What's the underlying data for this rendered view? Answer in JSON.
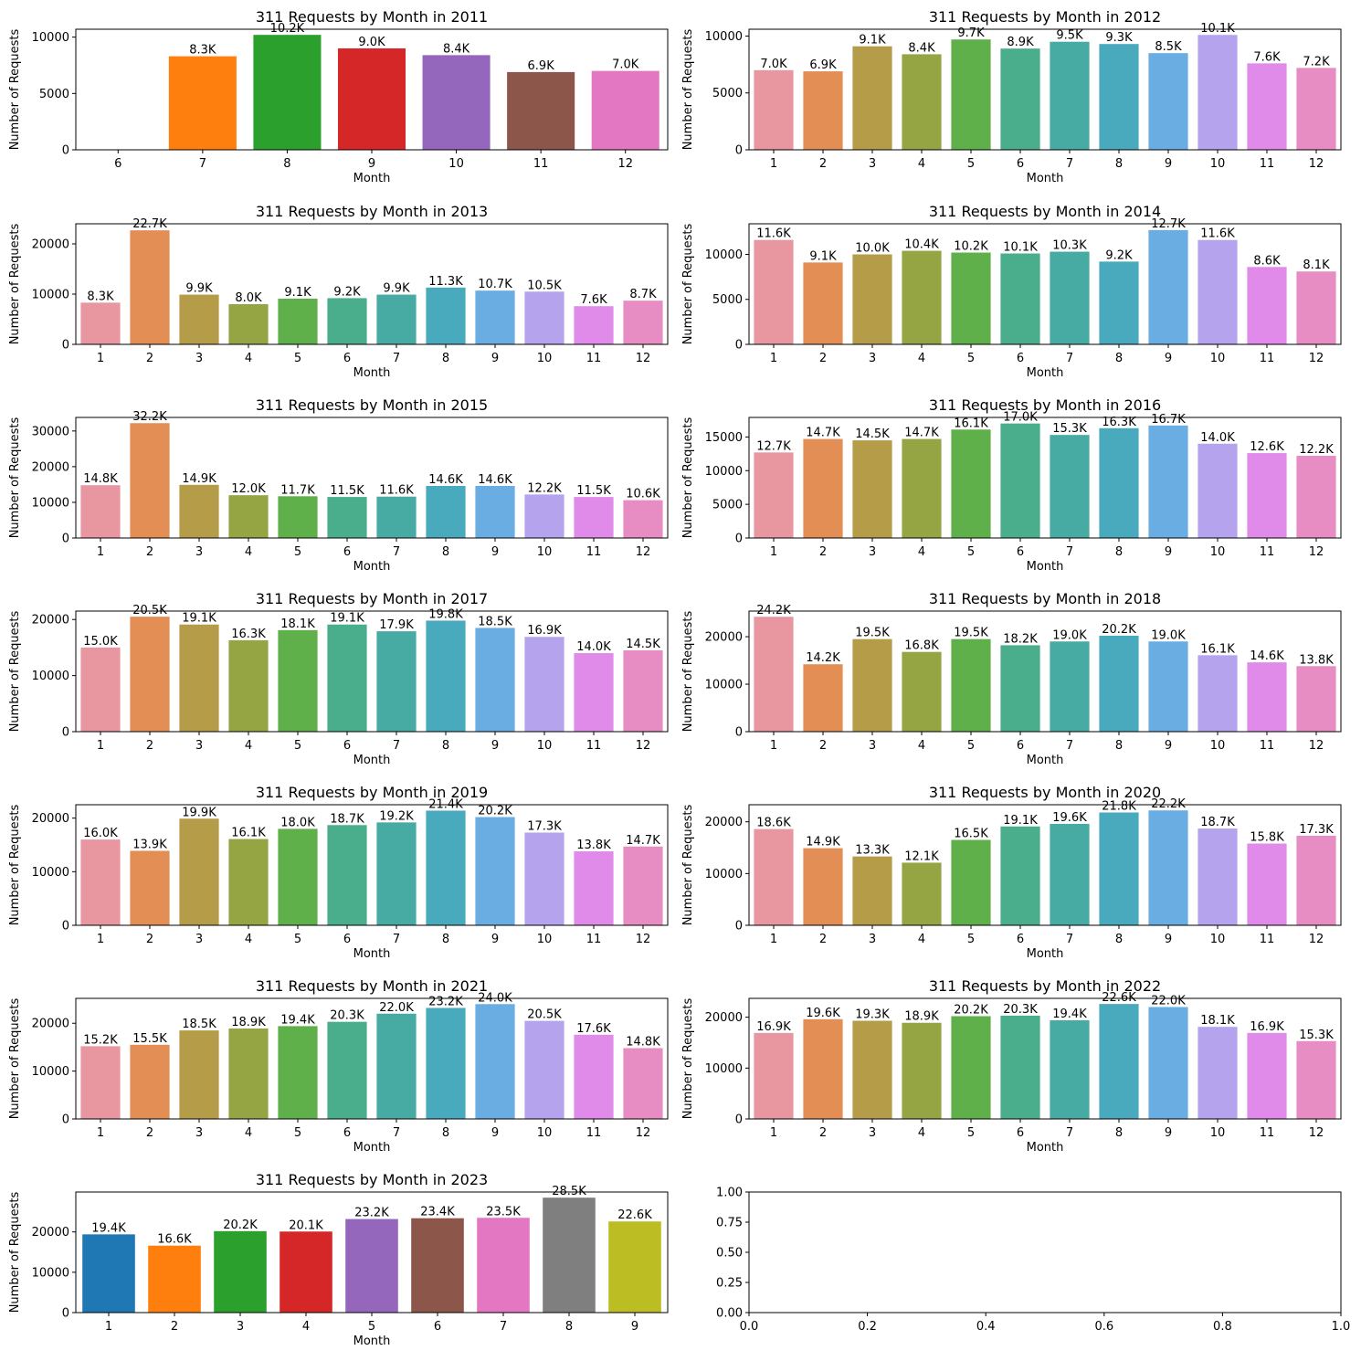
{
  "palette_12": [
    "#e8969f",
    "#e28e55",
    "#b49c48",
    "#96a544",
    "#5fb04a",
    "#4aae8d",
    "#47aba4",
    "#49aabe",
    "#69ade3",
    "#b5a4ed",
    "#e08be9",
    "#e78dc3"
  ],
  "palette_tab10": [
    "#1f77b4",
    "#ff7f0e",
    "#2ca02c",
    "#d62728",
    "#9467bd",
    "#8c564b",
    "#e377c2",
    "#7f7f7f",
    "#bcbd22",
    "#17becf"
  ],
  "chart_data": [
    {
      "type": "bar",
      "title": "311 Requests by Month in 2011",
      "xlabel": "Month",
      "ylabel": "Number of Requests",
      "categories": [
        "6",
        "7",
        "8",
        "9",
        "10",
        "11",
        "12"
      ],
      "values": [
        0,
        8300,
        10200,
        9000,
        8400,
        6900,
        7000
      ],
      "labels": [
        "",
        "8.3K",
        "10.2K",
        "9.0K",
        "8.4K",
        "6.9K",
        "7.0K"
      ],
      "ylim": [
        0,
        10700
      ],
      "yticks": [
        0,
        5000,
        10000
      ],
      "ytick_labels": [
        "0",
        "5000",
        "10000"
      ],
      "palette": "tab10"
    },
    {
      "type": "bar",
      "title": "311 Requests by Month in 2012",
      "xlabel": "Month",
      "ylabel": "Number of Requests",
      "categories": [
        "1",
        "2",
        "3",
        "4",
        "5",
        "6",
        "7",
        "8",
        "9",
        "10",
        "11",
        "12"
      ],
      "values": [
        7000,
        6900,
        9100,
        8400,
        9700,
        8900,
        9500,
        9300,
        8500,
        10100,
        7600,
        7200
      ],
      "labels": [
        "7.0K",
        "6.9K",
        "9.1K",
        "8.4K",
        "9.7K",
        "8.9K",
        "9.5K",
        "9.3K",
        "8.5K",
        "10.1K",
        "7.6K",
        "7.2K"
      ],
      "ylim": [
        0,
        10600
      ],
      "yticks": [
        0,
        5000,
        10000
      ],
      "ytick_labels": [
        "0",
        "5000",
        "10000"
      ],
      "palette": "12"
    },
    {
      "type": "bar",
      "title": "311 Requests by Month in 2013",
      "xlabel": "Month",
      "ylabel": "Number of Requests",
      "categories": [
        "1",
        "2",
        "3",
        "4",
        "5",
        "6",
        "7",
        "8",
        "9",
        "10",
        "11",
        "12"
      ],
      "values": [
        8300,
        22700,
        9900,
        8000,
        9100,
        9200,
        9900,
        11300,
        10700,
        10500,
        7600,
        8700
      ],
      "labels": [
        "8.3K",
        "22.7K",
        "9.9K",
        "8.0K",
        "9.1K",
        "9.2K",
        "9.9K",
        "11.3K",
        "10.7K",
        "10.5K",
        "7.6K",
        "8.7K"
      ],
      "ylim": [
        0,
        24000
      ],
      "yticks": [
        0,
        10000,
        20000
      ],
      "ytick_labels": [
        "0",
        "10000",
        "20000"
      ],
      "palette": "12"
    },
    {
      "type": "bar",
      "title": "311 Requests by Month in 2014",
      "xlabel": "Month",
      "ylabel": "Number of Requests",
      "categories": [
        "1",
        "2",
        "3",
        "4",
        "5",
        "6",
        "7",
        "8",
        "9",
        "10",
        "11",
        "12"
      ],
      "values": [
        11600,
        9100,
        10000,
        10400,
        10200,
        10100,
        10300,
        9200,
        12700,
        11600,
        8600,
        8100
      ],
      "labels": [
        "11.6K",
        "9.1K",
        "10.0K",
        "10.4K",
        "10.2K",
        "10.1K",
        "10.3K",
        "9.2K",
        "12.7K",
        "11.6K",
        "8.6K",
        "8.1K"
      ],
      "ylim": [
        0,
        13400
      ],
      "yticks": [
        0,
        5000,
        10000
      ],
      "ytick_labels": [
        "0",
        "5000",
        "10000"
      ],
      "palette": "12"
    },
    {
      "type": "bar",
      "title": "311 Requests by Month in 2015",
      "xlabel": "Month",
      "ylabel": "Number of Requests",
      "categories": [
        "1",
        "2",
        "3",
        "4",
        "5",
        "6",
        "7",
        "8",
        "9",
        "10",
        "11",
        "12"
      ],
      "values": [
        14800,
        32200,
        14900,
        12000,
        11700,
        11500,
        11600,
        14600,
        14600,
        12200,
        11500,
        10600
      ],
      "labels": [
        "14.8K",
        "32.2K",
        "14.9K",
        "12.0K",
        "11.7K",
        "11.5K",
        "11.6K",
        "14.6K",
        "14.6K",
        "12.2K",
        "11.5K",
        "10.6K"
      ],
      "ylim": [
        0,
        33800
      ],
      "yticks": [
        0,
        10000,
        20000,
        30000
      ],
      "ytick_labels": [
        "0",
        "10000",
        "20000",
        "30000"
      ],
      "palette": "12"
    },
    {
      "type": "bar",
      "title": "311 Requests by Month in 2016",
      "xlabel": "Month",
      "ylabel": "Number of Requests",
      "categories": [
        "1",
        "2",
        "3",
        "4",
        "5",
        "6",
        "7",
        "8",
        "9",
        "10",
        "11",
        "12"
      ],
      "values": [
        12700,
        14700,
        14500,
        14700,
        16100,
        17000,
        15300,
        16300,
        16700,
        14000,
        12600,
        12200
      ],
      "labels": [
        "12.7K",
        "14.7K",
        "14.5K",
        "14.7K",
        "16.1K",
        "17.0K",
        "15.3K",
        "16.3K",
        "16.7K",
        "14.0K",
        "12.6K",
        "12.2K"
      ],
      "ylim": [
        0,
        17900
      ],
      "yticks": [
        0,
        5000,
        10000,
        15000
      ],
      "ytick_labels": [
        "0",
        "5000",
        "10000",
        "15000"
      ],
      "palette": "12"
    },
    {
      "type": "bar",
      "title": "311 Requests by Month in 2017",
      "xlabel": "Month",
      "ylabel": "Number of Requests",
      "categories": [
        "1",
        "2",
        "3",
        "4",
        "5",
        "6",
        "7",
        "8",
        "9",
        "10",
        "11",
        "12"
      ],
      "values": [
        15000,
        20500,
        19100,
        16300,
        18100,
        19100,
        17900,
        19800,
        18500,
        16900,
        14000,
        14500
      ],
      "labels": [
        "15.0K",
        "20.5K",
        "19.1K",
        "16.3K",
        "18.1K",
        "19.1K",
        "17.9K",
        "19.8K",
        "18.5K",
        "16.9K",
        "14.0K",
        "14.5K"
      ],
      "ylim": [
        0,
        21500
      ],
      "yticks": [
        0,
        10000,
        20000
      ],
      "ytick_labels": [
        "0",
        "10000",
        "20000"
      ],
      "palette": "12"
    },
    {
      "type": "bar",
      "title": "311 Requests by Month in 2018",
      "xlabel": "Month",
      "ylabel": "Number of Requests",
      "categories": [
        "1",
        "2",
        "3",
        "4",
        "5",
        "6",
        "7",
        "8",
        "9",
        "10",
        "11",
        "12"
      ],
      "values": [
        24200,
        14200,
        19500,
        16800,
        19500,
        18200,
        19000,
        20200,
        19000,
        16100,
        14600,
        13800
      ],
      "labels": [
        "24.2K",
        "14.2K",
        "19.5K",
        "16.8K",
        "19.5K",
        "18.2K",
        "19.0K",
        "20.2K",
        "19.0K",
        "16.1K",
        "14.6K",
        "13.8K"
      ],
      "ylim": [
        0,
        25400
      ],
      "yticks": [
        0,
        10000,
        20000
      ],
      "ytick_labels": [
        "0",
        "10000",
        "20000"
      ],
      "palette": "12"
    },
    {
      "type": "bar",
      "title": "311 Requests by Month in 2019",
      "xlabel": "Month",
      "ylabel": "Number of Requests",
      "categories": [
        "1",
        "2",
        "3",
        "4",
        "5",
        "6",
        "7",
        "8",
        "9",
        "10",
        "11",
        "12"
      ],
      "values": [
        16000,
        13900,
        19900,
        16100,
        18000,
        18700,
        19200,
        21400,
        20200,
        17300,
        13800,
        14700
      ],
      "labels": [
        "16.0K",
        "13.9K",
        "19.9K",
        "16.1K",
        "18.0K",
        "18.7K",
        "19.2K",
        "21.4K",
        "20.2K",
        "17.3K",
        "13.8K",
        "14.7K"
      ],
      "ylim": [
        0,
        22500
      ],
      "yticks": [
        0,
        10000,
        20000
      ],
      "ytick_labels": [
        "0",
        "10000",
        "20000"
      ],
      "palette": "12"
    },
    {
      "type": "bar",
      "title": "311 Requests by Month in 2020",
      "xlabel": "Month",
      "ylabel": "Number of Requests",
      "categories": [
        "1",
        "2",
        "3",
        "4",
        "5",
        "6",
        "7",
        "8",
        "9",
        "10",
        "11",
        "12"
      ],
      "values": [
        18600,
        14900,
        13300,
        12100,
        16500,
        19100,
        19600,
        21800,
        22200,
        18700,
        15800,
        17300
      ],
      "labels": [
        "18.6K",
        "14.9K",
        "13.3K",
        "12.1K",
        "16.5K",
        "19.1K",
        "19.6K",
        "21.8K",
        "22.2K",
        "18.7K",
        "15.8K",
        "17.3K"
      ],
      "ylim": [
        0,
        23300
      ],
      "yticks": [
        0,
        10000,
        20000
      ],
      "ytick_labels": [
        "0",
        "10000",
        "20000"
      ],
      "palette": "12"
    },
    {
      "type": "bar",
      "title": "311 Requests by Month in 2021",
      "xlabel": "Month",
      "ylabel": "Number of Requests",
      "categories": [
        "1",
        "2",
        "3",
        "4",
        "5",
        "6",
        "7",
        "8",
        "9",
        "10",
        "11",
        "12"
      ],
      "values": [
        15200,
        15500,
        18500,
        18900,
        19400,
        20300,
        22000,
        23200,
        24000,
        20500,
        17600,
        14800
      ],
      "labels": [
        "15.2K",
        "15.5K",
        "18.5K",
        "18.9K",
        "19.4K",
        "20.3K",
        "22.0K",
        "23.2K",
        "24.0K",
        "20.5K",
        "17.6K",
        "14.8K"
      ],
      "ylim": [
        0,
        25200
      ],
      "yticks": [
        0,
        10000,
        20000
      ],
      "ytick_labels": [
        "0",
        "10000",
        "20000"
      ],
      "palette": "12"
    },
    {
      "type": "bar",
      "title": "311 Requests by Month in 2022",
      "xlabel": "Month",
      "ylabel": "Number of Requests",
      "categories": [
        "1",
        "2",
        "3",
        "4",
        "5",
        "6",
        "7",
        "8",
        "9",
        "10",
        "11",
        "12"
      ],
      "values": [
        16900,
        19600,
        19300,
        18900,
        20200,
        20300,
        19400,
        22600,
        22000,
        18100,
        16900,
        15300
      ],
      "labels": [
        "16.9K",
        "19.6K",
        "19.3K",
        "18.9K",
        "20.2K",
        "20.3K",
        "19.4K",
        "22.6K",
        "22.0K",
        "18.1K",
        "16.9K",
        "15.3K"
      ],
      "ylim": [
        0,
        23700
      ],
      "yticks": [
        0,
        10000,
        20000
      ],
      "ytick_labels": [
        "0",
        "10000",
        "20000"
      ],
      "palette": "12"
    },
    {
      "type": "bar",
      "title": "311 Requests by Month in 2023",
      "xlabel": "Month",
      "ylabel": "Number of Requests",
      "categories": [
        "1",
        "2",
        "3",
        "4",
        "5",
        "6",
        "7",
        "8",
        "9"
      ],
      "values": [
        19400,
        16600,
        20200,
        20100,
        23200,
        23400,
        23500,
        28500,
        22600
      ],
      "labels": [
        "19.4K",
        "16.6K",
        "20.2K",
        "20.1K",
        "23.2K",
        "23.4K",
        "23.5K",
        "28.5K",
        "22.6K"
      ],
      "ylim": [
        0,
        29900
      ],
      "yticks": [
        0,
        10000,
        20000
      ],
      "ytick_labels": [
        "0",
        "10000",
        "20000"
      ],
      "palette": "tab10"
    },
    {
      "type": "empty",
      "title": "",
      "xlabel": "",
      "ylabel": "",
      "xlim": [
        0,
        1
      ],
      "ylim": [
        0,
        1
      ],
      "xticks": [
        0,
        0.2,
        0.4,
        0.6,
        0.8,
        1.0
      ],
      "xtick_labels": [
        "0.0",
        "0.2",
        "0.4",
        "0.6",
        "0.8",
        "1.0"
      ],
      "yticks": [
        0,
        0.25,
        0.5,
        0.75,
        1.0
      ],
      "ytick_labels": [
        "0.00",
        "0.25",
        "0.50",
        "0.75",
        "1.00"
      ]
    }
  ]
}
